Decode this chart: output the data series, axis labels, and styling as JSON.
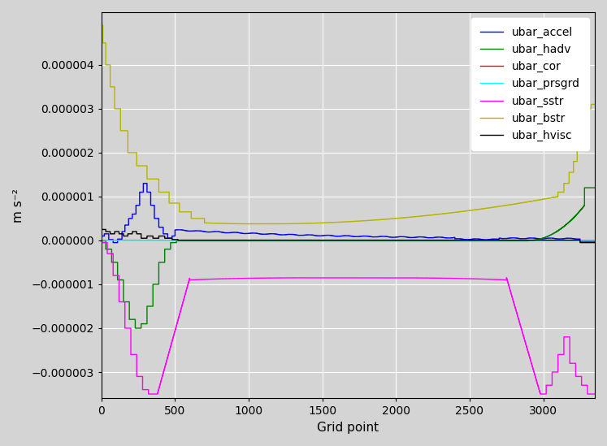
{
  "title": "",
  "xlabel": "Grid point",
  "ylabel": "m s⁻²",
  "xlim": [
    0,
    3350
  ],
  "ylim": [
    -3.6e-06,
    5.2e-06
  ],
  "yticks": [
    -3e-06,
    -2e-06,
    -1e-06,
    0,
    1e-06,
    2e-06,
    3e-06,
    4e-06
  ],
  "xticks": [
    0,
    500,
    1000,
    1500,
    2000,
    2500,
    3000
  ],
  "grid": true,
  "background_color": "#d4d4d4",
  "legend_labels": [
    "ubar_accel",
    "ubar_hadv",
    "ubar_cor",
    "ubar_prsgrd",
    "ubar_sstr",
    "ubar_bstr",
    "ubar_hvisc"
  ],
  "legend_colors": [
    "blue",
    "green",
    "red",
    "cyan",
    "magenta",
    "#b5b500",
    "black"
  ],
  "n_points": 3350
}
